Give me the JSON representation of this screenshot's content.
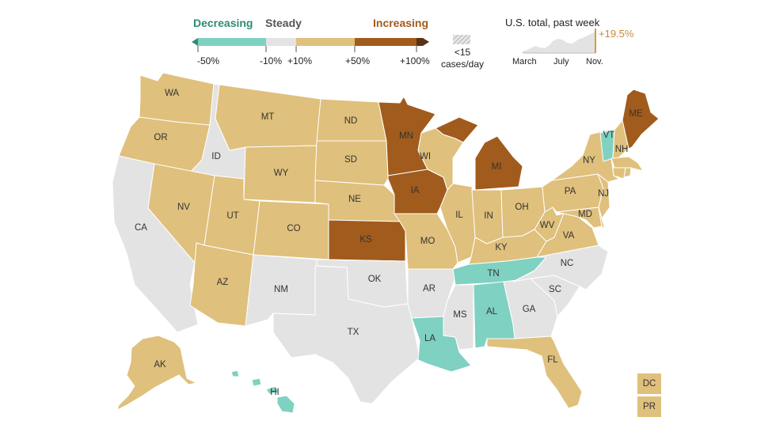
{
  "legend": {
    "decreasing": "Decreasing",
    "steady": "Steady",
    "increasing": "Increasing",
    "ticks": [
      "-50%",
      "-10%",
      "+10%",
      "+50%",
      "+100%"
    ],
    "low_cases_label_1": "<15",
    "low_cases_label_2": "cases/day",
    "colors": {
      "strong_decrease": "#2f8a78",
      "decrease": "#7fd1c1",
      "steady": "#e3e3e3",
      "increase": "#dfc07c",
      "strong_increase": "#a15b1c",
      "extreme_increase": "#5b3214",
      "decreasing_text": "#2e8b74",
      "increasing_text": "#a15b1c"
    }
  },
  "sparkline": {
    "title": "U.S. total, past week",
    "change": "+19.5%",
    "x_labels": [
      "March",
      "July",
      "Nov."
    ]
  },
  "states": {
    "WA": {
      "label": "WA",
      "category": "increase"
    },
    "OR": {
      "label": "OR",
      "category": "increase"
    },
    "CA": {
      "label": "CA",
      "category": "steady"
    },
    "ID": {
      "label": "ID",
      "category": "steady"
    },
    "NV": {
      "label": "NV",
      "category": "increase"
    },
    "MT": {
      "label": "MT",
      "category": "increase"
    },
    "WY": {
      "label": "WY",
      "category": "increase"
    },
    "UT": {
      "label": "UT",
      "category": "increase"
    },
    "AZ": {
      "label": "AZ",
      "category": "increase"
    },
    "CO": {
      "label": "CO",
      "category": "increase"
    },
    "NM": {
      "label": "NM",
      "category": "steady"
    },
    "ND": {
      "label": "ND",
      "category": "increase"
    },
    "SD": {
      "label": "SD",
      "category": "increase"
    },
    "NE": {
      "label": "NE",
      "category": "increase"
    },
    "KS": {
      "label": "KS",
      "category": "strong_increase"
    },
    "OK": {
      "label": "OK",
      "category": "steady"
    },
    "TX": {
      "label": "TX",
      "category": "steady"
    },
    "MN": {
      "label": "MN",
      "category": "strong_increase"
    },
    "IA": {
      "label": "IA",
      "category": "strong_increase"
    },
    "MO": {
      "label": "MO",
      "category": "increase"
    },
    "AR": {
      "label": "AR",
      "category": "steady"
    },
    "LA": {
      "label": "LA",
      "category": "decrease"
    },
    "WI": {
      "label": "WI",
      "category": "increase"
    },
    "IL": {
      "label": "IL",
      "category": "increase"
    },
    "MI": {
      "label": "MI",
      "category": "strong_increase"
    },
    "IN": {
      "label": "IN",
      "category": "increase"
    },
    "OH": {
      "label": "OH",
      "category": "increase"
    },
    "KY": {
      "label": "KY",
      "category": "increase"
    },
    "TN": {
      "label": "TN",
      "category": "decrease"
    },
    "MS": {
      "label": "MS",
      "category": "steady"
    },
    "AL": {
      "label": "AL",
      "category": "decrease"
    },
    "GA": {
      "label": "GA",
      "category": "steady"
    },
    "FL": {
      "label": "FL",
      "category": "increase"
    },
    "SC": {
      "label": "SC",
      "category": "steady"
    },
    "NC": {
      "label": "NC",
      "category": "steady"
    },
    "VA": {
      "label": "VA",
      "category": "increase"
    },
    "WV": {
      "label": "WV",
      "category": "increase"
    },
    "MD": {
      "label": "MD",
      "category": "increase"
    },
    "PA": {
      "label": "PA",
      "category": "increase"
    },
    "NJ": {
      "label": "NJ",
      "category": "increase"
    },
    "NY": {
      "label": "NY",
      "category": "increase"
    },
    "VT": {
      "label": "VT",
      "category": "decrease"
    },
    "NH": {
      "label": "NH",
      "category": "increase"
    },
    "ME": {
      "label": "ME",
      "category": "strong_increase"
    },
    "MA": {
      "label": "",
      "category": "increase"
    },
    "CT": {
      "label": "",
      "category": "increase"
    },
    "RI": {
      "label": "",
      "category": "increase"
    },
    "DE": {
      "label": "",
      "category": "increase"
    },
    "AK": {
      "label": "AK",
      "category": "increase"
    },
    "HI": {
      "label": "HI",
      "category": "decrease"
    }
  },
  "territories": {
    "DC": {
      "label": "DC",
      "category": "increase"
    },
    "PR": {
      "label": "PR",
      "category": "increase"
    }
  }
}
